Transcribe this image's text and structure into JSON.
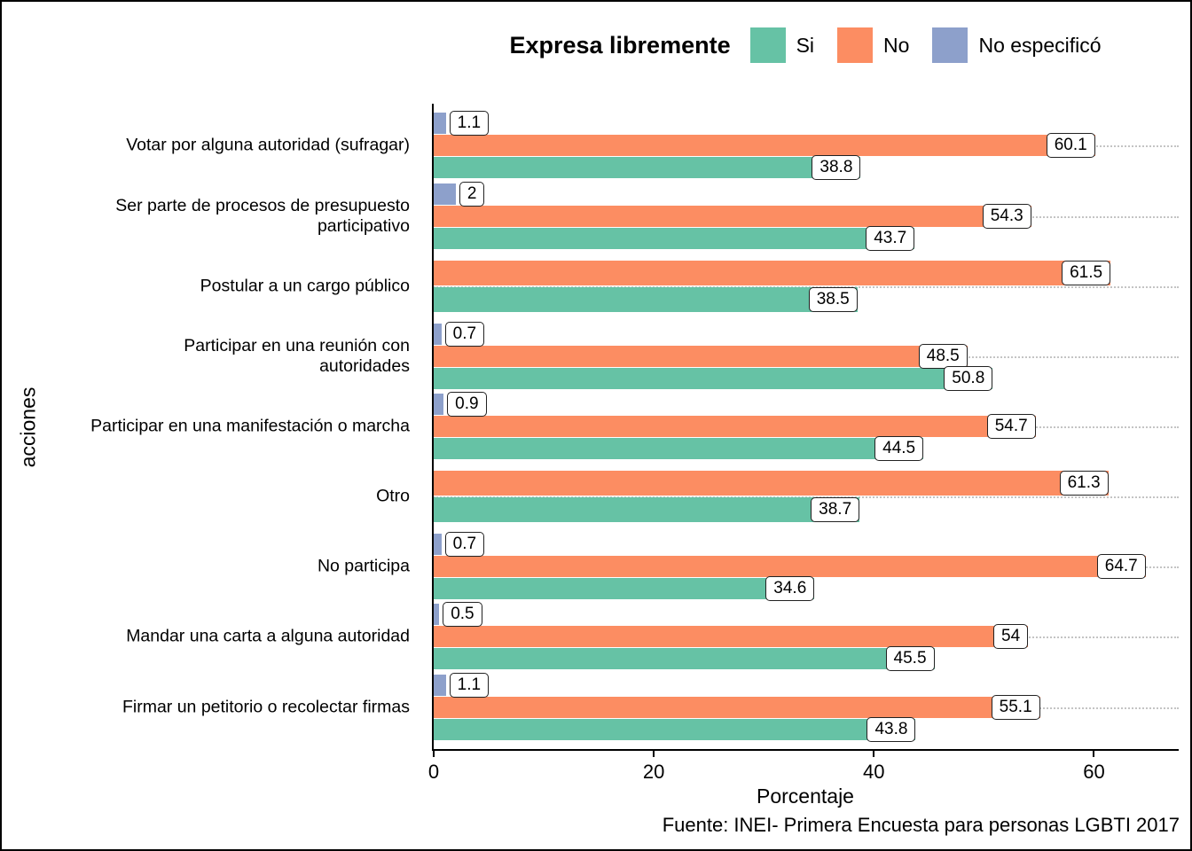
{
  "legend": {
    "title": "Expresa libremente",
    "items": [
      {
        "label": "Si",
        "color": "#66C2A5"
      },
      {
        "label": "No",
        "color": "#FC8D62"
      },
      {
        "label": "No especificó",
        "color": "#8DA0CB"
      }
    ]
  },
  "chart_data": {
    "type": "bar",
    "orientation": "horizontal",
    "title": "Expresa libremente",
    "xlabel": "Porcentaje",
    "ylabel": "acciones",
    "xlim": [
      0,
      67.7
    ],
    "xticks": [
      0,
      20,
      40,
      60
    ],
    "grid": "dotted horizontal lines at category centers",
    "legend_position": "top",
    "categories": [
      "Votar por alguna autoridad (sufragar)",
      "Ser parte de procesos de presupuesto\nparticipativo",
      "Postular a un cargo público",
      "Participar en una reunión con\nautoridades",
      "Participar en una manifestación o marcha",
      "Otro",
      "No participa",
      "Mandar una carta a alguna autoridad",
      "Firmar un petitorio o recolectar firmas"
    ],
    "series": [
      {
        "name": "Si",
        "color": "#66C2A5",
        "values": [
          38.8,
          43.7,
          38.5,
          50.8,
          44.5,
          38.7,
          34.6,
          45.5,
          43.8
        ]
      },
      {
        "name": "No",
        "color": "#FC8D62",
        "values": [
          60.1,
          54.3,
          61.5,
          48.5,
          54.7,
          61.3,
          64.7,
          54,
          55.1
        ]
      },
      {
        "name": "No especificó",
        "color": "#8DA0CB",
        "values": [
          1.1,
          2,
          null,
          0.7,
          0.9,
          null,
          0.7,
          0.5,
          1.1
        ]
      }
    ]
  },
  "footer": "Fuente: INEI- Primera Encuesta para personas LGBTI 2017"
}
